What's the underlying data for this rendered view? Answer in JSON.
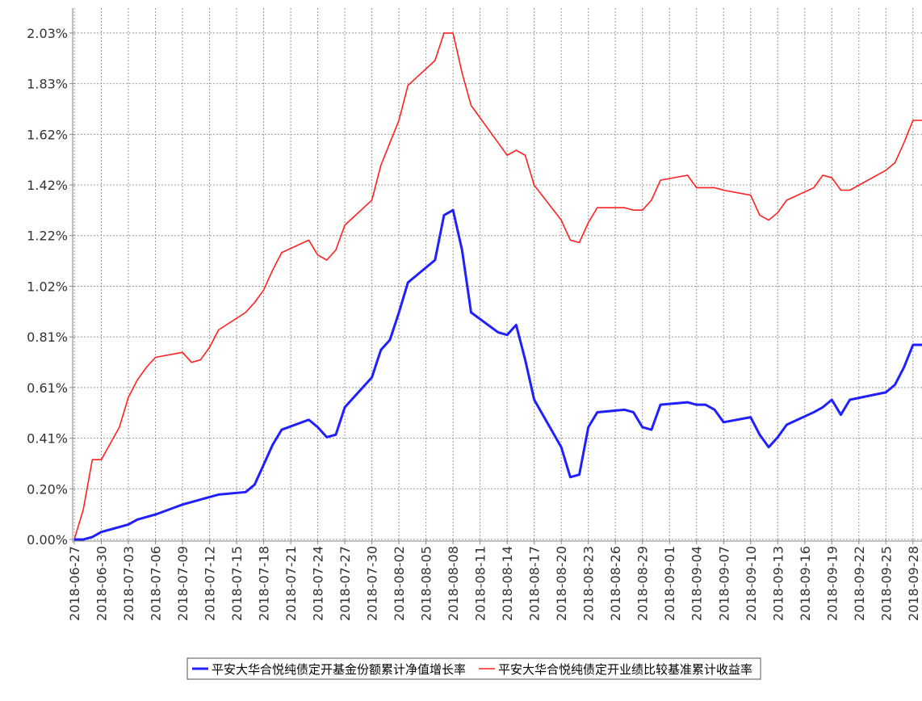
{
  "chart_data": {
    "type": "line",
    "x": [
      "2018-06-27",
      "2018-06-28",
      "2018-06-29",
      "2018-06-30",
      "2018-07-02",
      "2018-07-03",
      "2018-07-04",
      "2018-07-05",
      "2018-07-06",
      "2018-07-09",
      "2018-07-10",
      "2018-07-11",
      "2018-07-12",
      "2018-07-13",
      "2018-07-16",
      "2018-07-17",
      "2018-07-18",
      "2018-07-19",
      "2018-07-20",
      "2018-07-23",
      "2018-07-24",
      "2018-07-25",
      "2018-07-26",
      "2018-07-27",
      "2018-07-30",
      "2018-07-31",
      "2018-08-01",
      "2018-08-02",
      "2018-08-03",
      "2018-08-06",
      "2018-08-07",
      "2018-08-08",
      "2018-08-09",
      "2018-08-10",
      "2018-08-13",
      "2018-08-14",
      "2018-08-15",
      "2018-08-16",
      "2018-08-17",
      "2018-08-20",
      "2018-08-21",
      "2018-08-22",
      "2018-08-23",
      "2018-08-24",
      "2018-08-27",
      "2018-08-28",
      "2018-08-29",
      "2018-08-30",
      "2018-08-31",
      "2018-09-03",
      "2018-09-04",
      "2018-09-05",
      "2018-09-06",
      "2018-09-07",
      "2018-09-10",
      "2018-09-11",
      "2018-09-12",
      "2018-09-13",
      "2018-09-14",
      "2018-09-17",
      "2018-09-18",
      "2018-09-19",
      "2018-09-20",
      "2018-09-21",
      "2018-09-25",
      "2018-09-26",
      "2018-09-27",
      "2018-09-28",
      "2018-09-29"
    ],
    "series": [
      {
        "name": "平安大华合悦纯债定开基金份额累计净值增长率",
        "color": "#1f1fff",
        "width": 3,
        "values": [
          0,
          0,
          0.01,
          0.03,
          0.05,
          0.06,
          0.08,
          0.09,
          0.1,
          0.14,
          0.15,
          0.16,
          0.17,
          0.18,
          0.19,
          0.22,
          0.3,
          0.38,
          0.44,
          0.48,
          0.45,
          0.41,
          0.42,
          0.53,
          0.65,
          0.76,
          0.8,
          0.91,
          1.03,
          1.12,
          1.3,
          1.32,
          1.16,
          0.91,
          0.83,
          0.82,
          0.86,
          0.72,
          0.56,
          0.37,
          0.25,
          0.26,
          0.45,
          0.51,
          0.52,
          0.51,
          0.45,
          0.44,
          0.54,
          0.55,
          0.54,
          0.54,
          0.52,
          0.47,
          0.49,
          0.42,
          0.37,
          0.41,
          0.46,
          0.51,
          0.53,
          0.56,
          0.5,
          0.56,
          0.59,
          0.62,
          0.69,
          0.78,
          0.78
        ]
      },
      {
        "name": "平安大华合悦纯债定开业绩比较基准累计收益率",
        "color": "#ff2020",
        "width": 1.6,
        "values": [
          0,
          0.12,
          0.32,
          0.32,
          0.45,
          0.57,
          0.64,
          0.69,
          0.73,
          0.75,
          0.71,
          0.72,
          0.77,
          0.84,
          0.91,
          0.95,
          1.0,
          1.08,
          1.15,
          1.2,
          1.14,
          1.12,
          1.16,
          1.26,
          1.36,
          1.5,
          1.59,
          1.68,
          1.82,
          1.92,
          2.03,
          2.03,
          1.87,
          1.74,
          1.59,
          1.54,
          1.56,
          1.54,
          1.42,
          1.28,
          1.2,
          1.19,
          1.27,
          1.33,
          1.33,
          1.32,
          1.32,
          1.36,
          1.44,
          1.46,
          1.41,
          1.41,
          1.41,
          1.4,
          1.38,
          1.3,
          1.28,
          1.31,
          1.36,
          1.41,
          1.46,
          1.45,
          1.4,
          1.4,
          1.48,
          1.51,
          1.59,
          1.68,
          1.68
        ]
      }
    ],
    "xlim": [
      "2018-06-27",
      "2018-09-29"
    ],
    "xticks": [
      "2018-06-27",
      "2018-06-30",
      "2018-07-03",
      "2018-07-06",
      "2018-07-09",
      "2018-07-12",
      "2018-07-15",
      "2018-07-18",
      "2018-07-21",
      "2018-07-24",
      "2018-07-27",
      "2018-07-30",
      "2018-08-02",
      "2018-08-05",
      "2018-08-08",
      "2018-08-11",
      "2018-08-14",
      "2018-08-17",
      "2018-08-20",
      "2018-08-23",
      "2018-08-26",
      "2018-08-29",
      "2018-09-01",
      "2018-09-04",
      "2018-09-07",
      "2018-09-10",
      "2018-09-13",
      "2018-09-16",
      "2018-09-19",
      "2018-09-22",
      "2018-09-25",
      "2018-09-28"
    ],
    "ylim": [
      0,
      2.13
    ],
    "yticks": [
      {
        "value": 0,
        "label": "0.00%"
      },
      {
        "value": 0.203,
        "label": "0.20%"
      },
      {
        "value": 0.406,
        "label": "0.41%"
      },
      {
        "value": 0.609,
        "label": "0.61%"
      },
      {
        "value": 0.812,
        "label": "0.81%"
      },
      {
        "value": 1.015,
        "label": "1.02%"
      },
      {
        "value": 1.218,
        "label": "1.22%"
      },
      {
        "value": 1.421,
        "label": "1.42%"
      },
      {
        "value": 1.624,
        "label": "1.62%"
      },
      {
        "value": 1.827,
        "label": "1.83%"
      },
      {
        "value": 2.03,
        "label": "2.03%"
      }
    ],
    "grid": true
  }
}
